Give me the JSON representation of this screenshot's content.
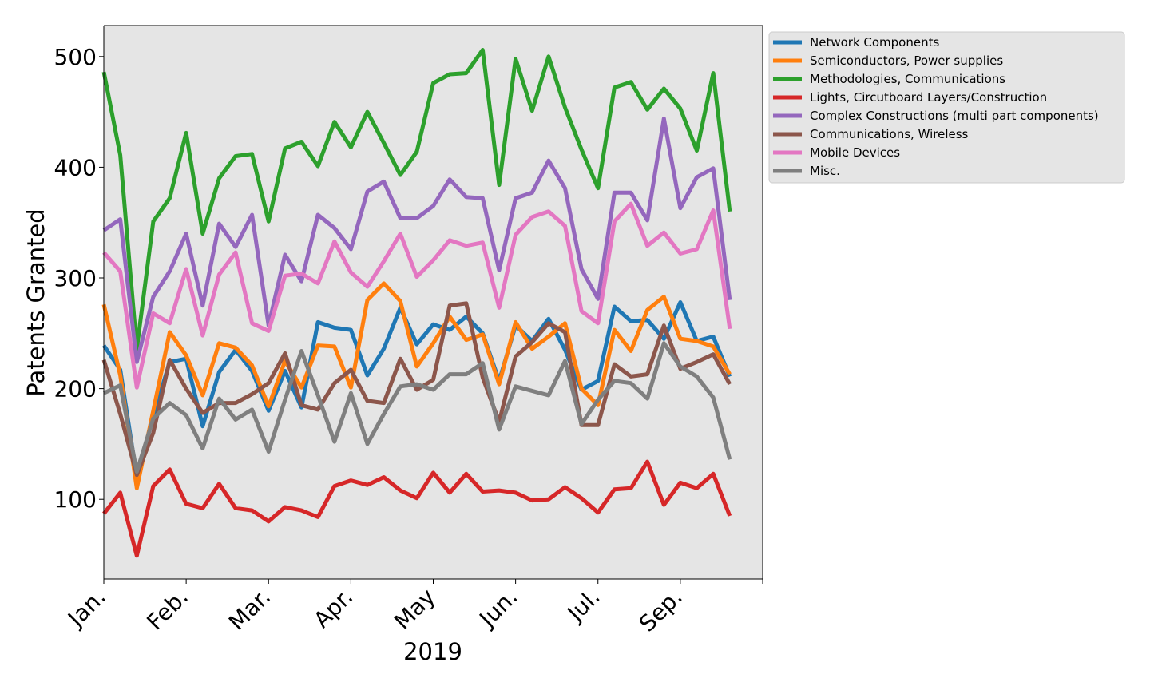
{
  "chart_data": {
    "type": "line",
    "title": "",
    "xlabel": "2019",
    "ylabel": "Patents Granted",
    "x_tick_labels": [
      "Jan.",
      "Feb.",
      "Mar.",
      "Apr.",
      "May",
      "Jun.",
      "Jul.",
      "Sep."
    ],
    "ylim": [
      28,
      528
    ],
    "y_ticks": [
      100,
      200,
      300,
      400,
      500
    ],
    "background": "#e5e5e5",
    "legend_position": "upper right, outside plot",
    "x_count": 40,
    "series": [
      {
        "name": "Network Components",
        "color": "#1f77b4",
        "values": [
          239,
          217,
          120,
          175,
          224,
          227,
          166,
          215,
          235,
          216,
          180,
          216,
          183,
          260,
          255,
          253,
          212,
          236,
          273,
          240,
          258,
          253,
          265,
          250,
          207,
          257,
          243,
          263,
          235,
          199,
          207,
          274,
          261,
          262,
          245,
          278,
          243,
          247,
          211
        ]
      },
      {
        "name": "Semiconductors, Power supplies",
        "color": "#ff7f0e",
        "values": [
          276,
          212,
          110,
          180,
          251,
          230,
          194,
          241,
          237,
          221,
          184,
          225,
          201,
          239,
          238,
          201,
          280,
          295,
          279,
          220,
          241,
          265,
          244,
          249,
          204,
          260,
          236,
          247,
          259,
          200,
          185,
          253,
          234,
          271,
          283,
          245,
          243,
          238,
          213
        ]
      },
      {
        "name": "Methodologies, Communications",
        "color": "#2ca02c",
        "values": [
          486,
          411,
          236,
          351,
          372,
          431,
          340,
          390,
          410,
          412,
          351,
          417,
          423,
          401,
          441,
          418,
          450,
          422,
          393,
          414,
          476,
          484,
          485,
          506,
          384,
          498,
          451,
          500,
          454,
          416,
          381,
          472,
          477,
          452,
          471,
          453,
          415,
          485,
          360
        ]
      },
      {
        "name": "Lights, Circutboard Layers/Construction",
        "color": "#d62728",
        "values": [
          87,
          106,
          49,
          112,
          127,
          96,
          92,
          114,
          92,
          90,
          80,
          93,
          90,
          84,
          112,
          117,
          113,
          120,
          108,
          101,
          124,
          106,
          123,
          107,
          108,
          106,
          99,
          100,
          111,
          101,
          88,
          109,
          110,
          134,
          95,
          115,
          110,
          123,
          85
        ]
      },
      {
        "name": "Complex Constructions (multi part components)",
        "color": "#9467bd",
        "values": [
          343,
          353,
          224,
          283,
          306,
          340,
          275,
          349,
          328,
          357,
          257,
          321,
          297,
          357,
          345,
          326,
          378,
          387,
          354,
          354,
          365,
          389,
          373,
          372,
          307,
          372,
          377,
          406,
          381,
          308,
          281,
          377,
          377,
          352,
          444,
          363,
          391,
          399,
          280
        ]
      },
      {
        "name": "Communications, Wireless",
        "color": "#8c564b",
        "values": [
          226,
          177,
          122,
          160,
          226,
          200,
          178,
          187,
          187,
          195,
          205,
          232,
          185,
          181,
          205,
          217,
          189,
          187,
          227,
          199,
          208,
          275,
          277,
          210,
          170,
          229,
          242,
          259,
          251,
          167,
          167,
          222,
          211,
          213,
          257,
          218,
          224,
          231,
          204
        ]
      },
      {
        "name": "Mobile Devices",
        "color": "#e377c2",
        "values": [
          323,
          306,
          201,
          268,
          259,
          308,
          248,
          303,
          323,
          259,
          252,
          302,
          304,
          295,
          333,
          305,
          292,
          315,
          340,
          301,
          316,
          334,
          329,
          332,
          273,
          339,
          355,
          360,
          347,
          270,
          259,
          351,
          367,
          329,
          341,
          322,
          326,
          361,
          254
        ]
      },
      {
        "name": "Misc.",
        "color": "#7f7f7f",
        "values": [
          196,
          203,
          125,
          173,
          187,
          176,
          146,
          191,
          172,
          181,
          143,
          190,
          234,
          194,
          152,
          196,
          150,
          177,
          202,
          204,
          199,
          213,
          213,
          223,
          163,
          202,
          198,
          194,
          225,
          168,
          190,
          207,
          205,
          191,
          241,
          220,
          211,
          192,
          136
        ]
      }
    ]
  }
}
